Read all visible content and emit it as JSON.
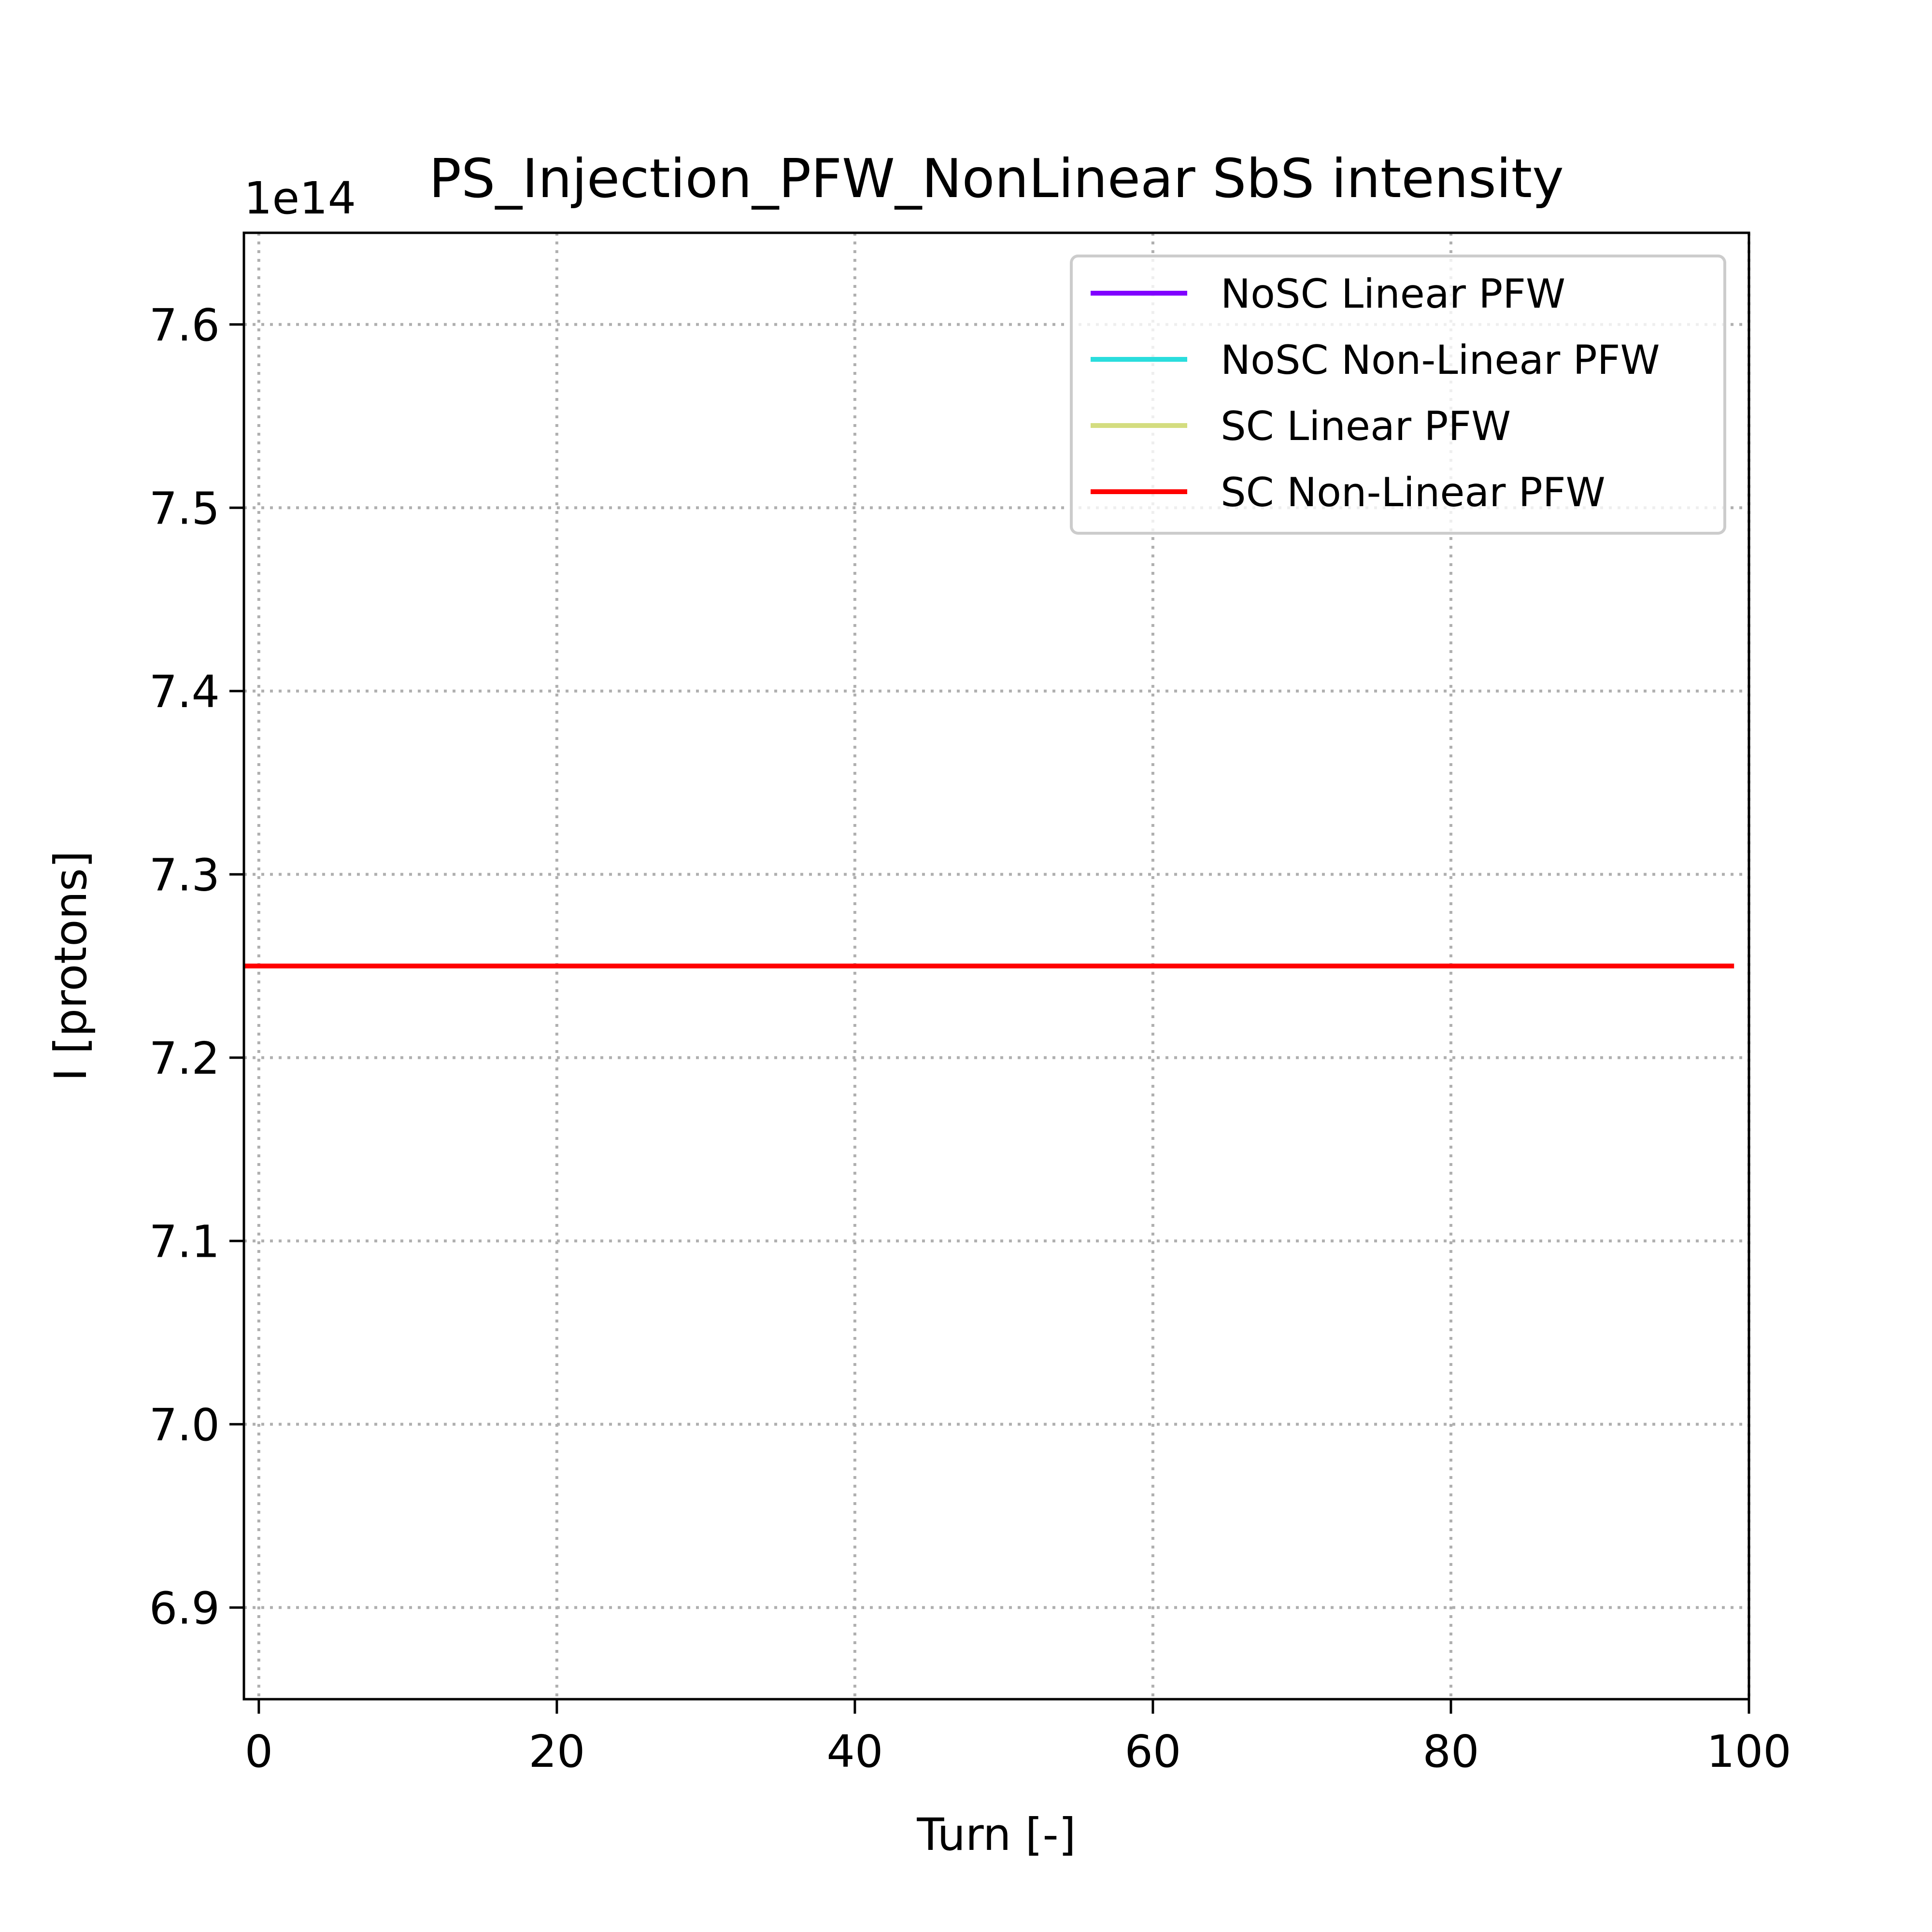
{
  "chart_data": {
    "type": "line",
    "title": "PS_Injection_PFW_NonLinear SbS intensity",
    "xlabel": "Turn [-]",
    "ylabel": "I [protons]",
    "y_offset_text": "1e14",
    "xlim": [
      -1,
      100
    ],
    "ylim": [
      6.85,
      7.65
    ],
    "xticks": [
      0,
      20,
      40,
      60,
      80,
      100
    ],
    "yticks": [
      6.9,
      7.0,
      7.1,
      7.2,
      7.3,
      7.4,
      7.5,
      7.6
    ],
    "xtick_labels": [
      "0",
      "20",
      "40",
      "60",
      "80",
      "100"
    ],
    "ytick_labels": [
      "6.9",
      "7.0",
      "7.1",
      "7.2",
      "7.3",
      "7.4",
      "7.5",
      "7.6"
    ],
    "grid": true,
    "legend_position": "top-right",
    "series": [
      {
        "name": "NoSC Linear PFW",
        "color": "#8000ff",
        "x": [
          -1,
          99
        ],
        "y": [
          7.25,
          7.25
        ]
      },
      {
        "name": "NoSC Non-Linear PFW",
        "color": "#2adddd",
        "x": [
          -1,
          99
        ],
        "y": [
          7.25,
          7.25
        ]
      },
      {
        "name": "SC Linear PFW",
        "color": "#d4dd80",
        "x": [
          -1,
          99
        ],
        "y": [
          7.25,
          7.25
        ]
      },
      {
        "name": "SC Non-Linear PFW",
        "color": "#ff0000",
        "x": [
          -1,
          99
        ],
        "y": [
          7.25,
          7.25
        ]
      }
    ]
  }
}
